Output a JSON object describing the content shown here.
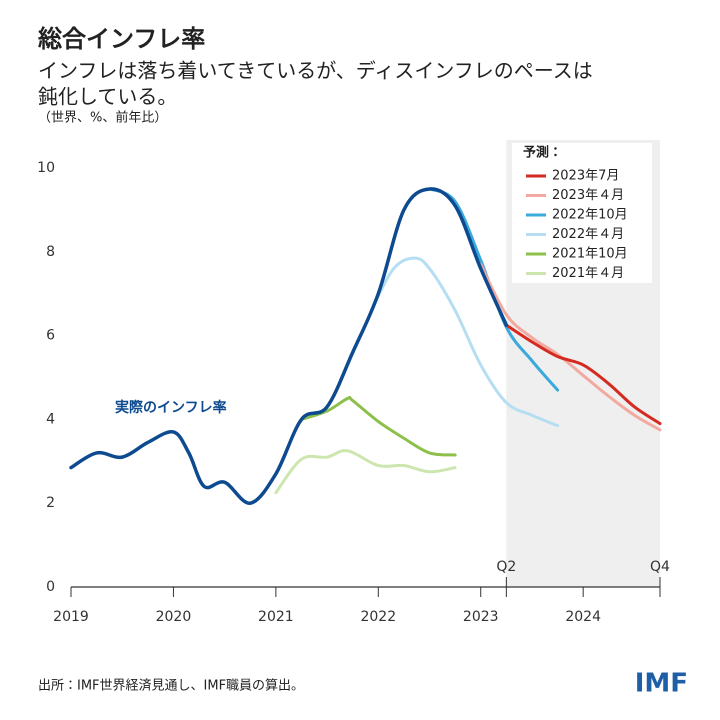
{
  "chart_data": {
    "type": "line",
    "title": "総合インフレ率",
    "subtitle": [
      "インフレは落ち着いてきているが、ディスインフレのペースは",
      "鈍化している。"
    ],
    "units": "（世界、%、前年比）",
    "source": "出所：IMF世界経済見通し、IMF職員の算出。",
    "logo": "IMF",
    "legend_title": "予測：",
    "legend": "upper right",
    "grid": false,
    "xlim": [
      2019,
      2024.75
    ],
    "xticks": [
      2019,
      2020,
      2021,
      2022,
      2023,
      2024
    ],
    "qticks": [
      {
        "value": 2023.25,
        "label": "Q2"
      },
      {
        "value": 2024.75,
        "label": "Q4"
      }
    ],
    "ylim": [
      0,
      10
    ],
    "yticks": [
      0,
      2,
      4,
      6,
      8,
      10
    ],
    "actual": {
      "name": "実際のインフレ率",
      "color": "#0d4a8f",
      "x": [
        2019,
        2019.25,
        2019.5,
        2019.75,
        2020,
        2020.15,
        2020.3,
        2020.5,
        2020.75,
        2021,
        2021.25,
        2021.5,
        2021.75,
        2022,
        2022.25,
        2022.5,
        2022.75,
        2023,
        2023.25
      ],
      "values": [
        2.85,
        3.2,
        3.1,
        3.45,
        3.7,
        3.2,
        2.4,
        2.5,
        2.0,
        2.7,
        4.0,
        4.3,
        5.6,
        7.0,
        9.0,
        9.5,
        9.1,
        7.6,
        6.25
      ]
    },
    "series": [
      {
        "name": "2023年7月",
        "color": "#d42a20",
        "x": [
          2023.25,
          2023.5,
          2023.75,
          2024,
          2024.25,
          2024.5,
          2024.75
        ],
        "values": [
          6.25,
          5.85,
          5.5,
          5.3,
          4.85,
          4.3,
          3.9
        ]
      },
      {
        "name": "2023年４月",
        "color": "#f2a9a0",
        "x": [
          2023,
          2023.25,
          2023.5,
          2023.75,
          2024,
          2024.25,
          2024.5,
          2024.75
        ],
        "values": [
          7.7,
          6.5,
          5.95,
          5.55,
          5.05,
          4.55,
          4.1,
          3.75
        ]
      },
      {
        "name": "2022年10月",
        "color": "#3aa9dc",
        "x": [
          2022.5,
          2022.75,
          2023,
          2023.25,
          2023.5,
          2023.75
        ],
        "values": [
          9.5,
          9.2,
          7.8,
          6.2,
          5.4,
          4.7
        ]
      },
      {
        "name": "2022年４月",
        "color": "#b6def2",
        "x": [
          2021.95,
          2022.15,
          2022.35,
          2022.5,
          2022.75,
          2023,
          2023.25,
          2023.5,
          2023.75
        ],
        "values": [
          6.7,
          7.6,
          7.85,
          7.6,
          6.6,
          5.3,
          4.4,
          4.1,
          3.85
        ]
      },
      {
        "name": "2021年10月",
        "color": "#8dc04a",
        "x": [
          2021.25,
          2021.5,
          2021.7,
          2021.75,
          2022,
          2022.25,
          2022.5,
          2022.75
        ],
        "values": [
          4.0,
          4.2,
          4.5,
          4.45,
          3.95,
          3.55,
          3.2,
          3.15
        ]
      },
      {
        "name": "2021年４月",
        "color": "#cde6b0",
        "x": [
          2021,
          2021.25,
          2021.5,
          2021.7,
          2022,
          2022.25,
          2022.5,
          2022.75
        ],
        "values": [
          2.25,
          3.05,
          3.1,
          3.25,
          2.9,
          2.9,
          2.75,
          2.85
        ]
      }
    ]
  }
}
